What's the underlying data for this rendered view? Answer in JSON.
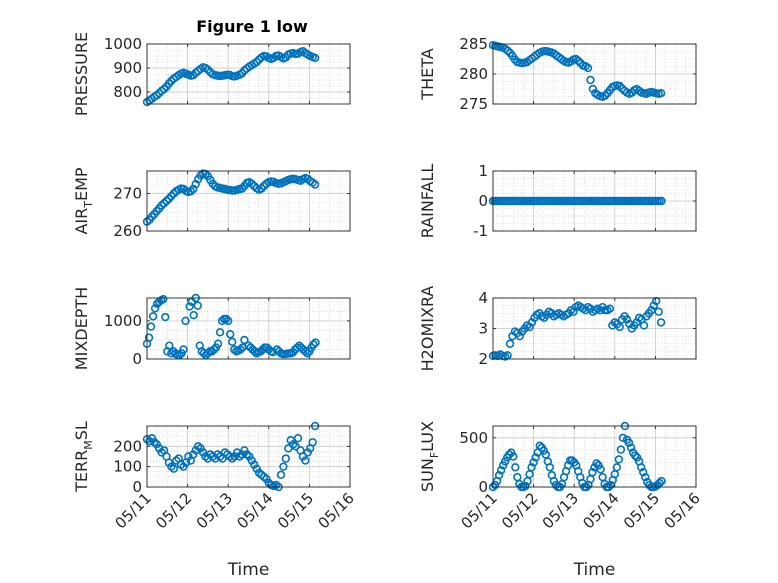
{
  "figure_title": "Figure 1 low",
  "colors": {
    "marker": "#0072BD",
    "axis": "#262626",
    "grid": "#c8c8c8"
  },
  "x_axis": {
    "label": "Time",
    "ticks": [
      0,
      1,
      2,
      3,
      4,
      5
    ],
    "tick_labels": [
      "05/11",
      "05/12",
      "05/13",
      "05/14",
      "05/15",
      "05/16"
    ]
  },
  "chart_data": [
    {
      "type": "scatter",
      "ylabel": "PRESSURE",
      "ylabel_sub": "",
      "ylabel_rest": "",
      "xlim": [
        0,
        5
      ],
      "ylim": [
        750,
        1000
      ],
      "yticks": [
        800,
        900,
        1000
      ],
      "ytick_labels": [
        "800",
        "900",
        "1000"
      ],
      "grid": true,
      "x": [
        0,
        0.06,
        0.12,
        0.18,
        0.24,
        0.3,
        0.36,
        0.42,
        0.48,
        0.54,
        0.6,
        0.66,
        0.72,
        0.78,
        0.84,
        0.9,
        0.96,
        1.02,
        1.08,
        1.14,
        1.2,
        1.26,
        1.32,
        1.38,
        1.44,
        1.5,
        1.56,
        1.62,
        1.68,
        1.74,
        1.8,
        1.86,
        1.92,
        1.98,
        2.04,
        2.1,
        2.16,
        2.22,
        2.28,
        2.34,
        2.4,
        2.46,
        2.52,
        2.58,
        2.64,
        2.7,
        2.76,
        2.82,
        2.88,
        2.94,
        3,
        3.06,
        3.12,
        3.18,
        3.24,
        3.3,
        3.36,
        3.42,
        3.48,
        3.54,
        3.6,
        3.66,
        3.72,
        3.78,
        3.84,
        3.9,
        3.96,
        4.02,
        4.08,
        4.14
      ],
      "y": [
        758,
        765,
        772,
        780,
        786,
        795,
        805,
        812,
        822,
        835,
        846,
        856,
        863,
        870,
        876,
        880,
        876,
        872,
        868,
        870,
        880,
        888,
        896,
        903,
        900,
        893,
        882,
        874,
        870,
        868,
        867,
        868,
        870,
        872,
        871,
        866,
        865,
        868,
        872,
        878,
        890,
        898,
        906,
        912,
        918,
        925,
        935,
        944,
        950,
        948,
        942,
        938,
        942,
        950,
        952,
        946,
        940,
        944,
        956,
        960,
        962,
        958,
        960,
        966,
        970,
        962,
        956,
        950,
        946,
        942
      ]
    },
    {
      "type": "scatter",
      "ylabel": "THETA",
      "ylabel_sub": "",
      "ylabel_rest": "",
      "xlim": [
        0,
        5
      ],
      "ylim": [
        275,
        285
      ],
      "yticks": [
        275,
        280,
        285
      ],
      "ytick_labels": [
        "275",
        "280",
        "285"
      ],
      "grid": true,
      "x": [
        0,
        0.06,
        0.12,
        0.18,
        0.24,
        0.3,
        0.36,
        0.42,
        0.48,
        0.54,
        0.6,
        0.66,
        0.72,
        0.78,
        0.84,
        0.9,
        0.96,
        1.02,
        1.08,
        1.14,
        1.2,
        1.26,
        1.32,
        1.38,
        1.44,
        1.5,
        1.56,
        1.62,
        1.68,
        1.74,
        1.8,
        1.86,
        1.92,
        1.98,
        2.04,
        2.1,
        2.16,
        2.22,
        2.28,
        2.34,
        2.4,
        2.46,
        2.52,
        2.58,
        2.64,
        2.7,
        2.76,
        2.82,
        2.88,
        2.94,
        3,
        3.06,
        3.12,
        3.18,
        3.24,
        3.3,
        3.36,
        3.42,
        3.48,
        3.54,
        3.6,
        3.66,
        3.72,
        3.78,
        3.84,
        3.9,
        3.96,
        4.02,
        4.08,
        4.14
      ],
      "y": [
        284.8,
        284.7,
        284.6,
        284.5,
        284.4,
        284.2,
        283.9,
        283.5,
        283,
        282.4,
        282,
        281.9,
        281.8,
        281.9,
        282,
        282.3,
        282.6,
        282.9,
        283.2,
        283.5,
        283.7,
        283.8,
        283.8,
        283.7,
        283.6,
        283.4,
        283.1,
        282.8,
        282.5,
        282.2,
        282,
        281.9,
        282.1,
        282.4,
        282.5,
        282.2,
        281.8,
        281.4,
        281.3,
        281,
        279,
        277.5,
        276.8,
        276.5,
        276.3,
        276.2,
        276.4,
        276.8,
        277.3,
        277.8,
        278,
        278.1,
        278,
        277.6,
        277.2,
        276.9,
        276.7,
        276.9,
        277.3,
        277.5,
        277.2,
        276.9,
        276.8,
        276.7,
        276.9,
        277,
        276.9,
        276.8,
        276.7,
        276.8
      ]
    },
    {
      "type": "scatter",
      "ylabel": "AIR",
      "ylabel_sub": "T",
      "ylabel_rest": "EMP",
      "xlim": [
        0,
        5
      ],
      "ylim": [
        260,
        276
      ],
      "yticks": [
        260,
        270
      ],
      "ytick_labels": [
        "260",
        "270"
      ],
      "grid": true,
      "x": [
        0,
        0.06,
        0.12,
        0.18,
        0.24,
        0.3,
        0.36,
        0.42,
        0.48,
        0.54,
        0.6,
        0.66,
        0.72,
        0.78,
        0.84,
        0.9,
        0.96,
        1.02,
        1.08,
        1.14,
        1.2,
        1.26,
        1.32,
        1.38,
        1.44,
        1.5,
        1.56,
        1.62,
        1.68,
        1.74,
        1.8,
        1.86,
        1.92,
        1.98,
        2.04,
        2.1,
        2.16,
        2.22,
        2.28,
        2.34,
        2.4,
        2.46,
        2.52,
        2.58,
        2.64,
        2.7,
        2.76,
        2.82,
        2.88,
        2.94,
        3,
        3.06,
        3.12,
        3.18,
        3.24,
        3.3,
        3.36,
        3.42,
        3.48,
        3.54,
        3.6,
        3.66,
        3.72,
        3.78,
        3.84,
        3.9,
        3.96,
        4.02,
        4.08,
        4.14
      ],
      "y": [
        262.5,
        263,
        263.8,
        264.5,
        265.3,
        266,
        266.8,
        267.4,
        268,
        268.6,
        269.3,
        270,
        270.6,
        271,
        271.3,
        271.2,
        270.7,
        270.4,
        270.6,
        271.2,
        272.5,
        273.8,
        274.8,
        275.3,
        275.2,
        274.6,
        273.6,
        272.6,
        271.9,
        271.6,
        271.5,
        271.3,
        271.2,
        271,
        270.9,
        270.8,
        270.8,
        271,
        271.2,
        271.3,
        272,
        272.8,
        273,
        272.6,
        272,
        271.4,
        271,
        271.3,
        272,
        272.6,
        273,
        273.2,
        273.1,
        272.8,
        272.6,
        272.7,
        273,
        273.3,
        273.6,
        273.8,
        273.9,
        273.8,
        273.6,
        273.4,
        273.8,
        274.1,
        273.9,
        273.3,
        272.9,
        272.4
      ]
    },
    {
      "type": "scatter",
      "ylabel": "RAINFALL",
      "ylabel_sub": "",
      "ylabel_rest": "",
      "xlim": [
        0,
        5
      ],
      "ylim": [
        -1,
        1
      ],
      "yticks": [
        -1,
        0,
        1
      ],
      "ytick_labels": [
        "-1",
        "0",
        "1"
      ],
      "grid": true,
      "x": [
        0,
        0.05,
        0.1,
        0.15,
        0.2,
        0.25,
        0.3,
        0.35,
        0.4,
        0.45,
        0.5,
        0.55,
        0.6,
        0.65,
        0.7,
        0.75,
        0.8,
        0.85,
        0.9,
        0.95,
        1,
        1.05,
        1.1,
        1.15,
        1.2,
        1.25,
        1.3,
        1.35,
        1.4,
        1.45,
        1.5,
        1.55,
        1.6,
        1.65,
        1.7,
        1.75,
        1.8,
        1.85,
        1.9,
        1.95,
        2,
        2.05,
        2.1,
        2.15,
        2.2,
        2.25,
        2.3,
        2.35,
        2.4,
        2.45,
        2.5,
        2.55,
        2.6,
        2.65,
        2.7,
        2.75,
        2.8,
        2.85,
        2.9,
        2.95,
        3,
        3.05,
        3.1,
        3.15,
        3.2,
        3.25,
        3.3,
        3.35,
        3.4,
        3.45,
        3.5,
        3.55,
        3.6,
        3.65,
        3.7,
        3.75,
        3.8,
        3.85,
        3.9,
        3.95,
        4,
        4.05,
        4.1,
        4.15
      ],
      "y": [
        0,
        0,
        0,
        0,
        0,
        0,
        0,
        0,
        0,
        0,
        0,
        0,
        0,
        0,
        0,
        0,
        0,
        0,
        0,
        0,
        0,
        0,
        0,
        0,
        0,
        0,
        0,
        0,
        0,
        0,
        0,
        0,
        0,
        0,
        0,
        0,
        0,
        0,
        0,
        0,
        0,
        0,
        0,
        0,
        0,
        0,
        0,
        0,
        0,
        0,
        0,
        0,
        0,
        0,
        0,
        0,
        0,
        0,
        0,
        0,
        0,
        0,
        0,
        0,
        0,
        0,
        0,
        0,
        0,
        0,
        0,
        0,
        0,
        0,
        0,
        0,
        0,
        0,
        0,
        0,
        0,
        0,
        0,
        0
      ]
    },
    {
      "type": "scatter",
      "ylabel": "MIXDEPTH",
      "ylabel_sub": "",
      "ylabel_rest": "",
      "xlim": [
        0,
        5
      ],
      "ylim": [
        0,
        1600
      ],
      "yticks": [
        0,
        1000
      ],
      "ytick_labels": [
        "0",
        "1000"
      ],
      "grid": true,
      "x": [
        0,
        0.05,
        0.1,
        0.15,
        0.2,
        0.25,
        0.3,
        0.35,
        0.4,
        0.45,
        0.5,
        0.55,
        0.6,
        0.65,
        0.7,
        0.75,
        0.8,
        0.85,
        0.9,
        0.95,
        1.05,
        1.1,
        1.15,
        1.2,
        1.25,
        1.3,
        1.35,
        1.4,
        1.45,
        1.5,
        1.55,
        1.6,
        1.65,
        1.7,
        1.75,
        1.8,
        1.85,
        1.9,
        1.95,
        2,
        2.05,
        2.1,
        2.15,
        2.2,
        2.25,
        2.3,
        2.35,
        2.4,
        2.5,
        2.55,
        2.6,
        2.65,
        2.7,
        2.75,
        2.8,
        2.85,
        2.9,
        2.95,
        3,
        3.05,
        3.1,
        3.2,
        3.25,
        3.3,
        3.35,
        3.4,
        3.45,
        3.5,
        3.55,
        3.6,
        3.65,
        3.7,
        3.75,
        3.8,
        3.85,
        3.9,
        3.95,
        4,
        4.05,
        4.1,
        4.15
      ],
      "y": [
        400,
        560,
        850,
        1120,
        1330,
        1450,
        1500,
        1540,
        1570,
        1100,
        200,
        350,
        150,
        200,
        140,
        110,
        100,
        150,
        250,
        1000,
        1380,
        1500,
        1150,
        1600,
        1400,
        350,
        200,
        150,
        100,
        150,
        200,
        200,
        250,
        300,
        400,
        700,
        1000,
        1050,
        1050,
        1000,
        650,
        450,
        250,
        200,
        220,
        250,
        300,
        500,
        350,
        300,
        250,
        200,
        150,
        180,
        200,
        250,
        300,
        300,
        250,
        200,
        180,
        250,
        200,
        150,
        130,
        130,
        140,
        150,
        150,
        180,
        250,
        300,
        350,
        300,
        250,
        200,
        150,
        200,
        300,
        380,
        430
      ]
    },
    {
      "type": "scatter",
      "ylabel": "H2OMIXRA",
      "ylabel_sub": "",
      "ylabel_rest": "",
      "xlim": [
        0,
        5
      ],
      "ylim": [
        2,
        4
      ],
      "yticks": [
        2,
        3,
        4
      ],
      "ytick_labels": [
        "2",
        "3",
        "4"
      ],
      "grid": true,
      "x": [
        0,
        0.06,
        0.12,
        0.18,
        0.24,
        0.3,
        0.36,
        0.42,
        0.48,
        0.54,
        0.6,
        0.66,
        0.72,
        0.78,
        0.84,
        0.9,
        0.96,
        1.02,
        1.08,
        1.14,
        1.2,
        1.26,
        1.32,
        1.38,
        1.44,
        1.5,
        1.56,
        1.62,
        1.68,
        1.74,
        1.8,
        1.86,
        1.92,
        1.98,
        2.04,
        2.1,
        2.16,
        2.22,
        2.28,
        2.34,
        2.4,
        2.46,
        2.52,
        2.58,
        2.64,
        2.7,
        2.76,
        2.82,
        2.88,
        2.94,
        3,
        3.06,
        3.12,
        3.18,
        3.24,
        3.3,
        3.36,
        3.42,
        3.48,
        3.54,
        3.6,
        3.66,
        3.72,
        3.78,
        3.84,
        3.9,
        3.96,
        4.02,
        4.08,
        4.14
      ],
      "y": [
        2.1,
        2.12,
        2.1,
        2.15,
        2.1,
        2.08,
        2.12,
        2.5,
        2.75,
        2.9,
        2.85,
        2.75,
        2.9,
        3,
        3.1,
        3.05,
        3.2,
        3.35,
        3.45,
        3.5,
        3.4,
        3.35,
        3.45,
        3.55,
        3.5,
        3.4,
        3.45,
        3.5,
        3.45,
        3.4,
        3.45,
        3.5,
        3.6,
        3.55,
        3.7,
        3.75,
        3.7,
        3.65,
        3.6,
        3.7,
        3.65,
        3.55,
        3.6,
        3.65,
        3.6,
        3.7,
        3.6,
        3.6,
        3.65,
        3.1,
        3.2,
        3.15,
        3.05,
        3.3,
        3.4,
        3.3,
        3.15,
        3,
        3.1,
        3.2,
        3.35,
        3.3,
        3.1,
        3.4,
        3.5,
        3.6,
        3.75,
        3.9,
        3.55,
        3.2
      ]
    },
    {
      "type": "scatter",
      "ylabel": "TERR",
      "ylabel_sub": "M",
      "ylabel_rest": "SL",
      "xlim": [
        0,
        5
      ],
      "ylim": [
        0,
        300
      ],
      "yticks": [
        0,
        100,
        200
      ],
      "ytick_labels": [
        "0",
        "100",
        "200"
      ],
      "grid": true,
      "x": [
        0,
        0.06,
        0.12,
        0.18,
        0.24,
        0.3,
        0.36,
        0.42,
        0.48,
        0.54,
        0.6,
        0.66,
        0.72,
        0.78,
        0.84,
        0.9,
        0.96,
        1.02,
        1.08,
        1.14,
        1.2,
        1.26,
        1.32,
        1.38,
        1.44,
        1.5,
        1.56,
        1.62,
        1.68,
        1.74,
        1.8,
        1.86,
        1.92,
        1.98,
        2.04,
        2.1,
        2.16,
        2.22,
        2.28,
        2.34,
        2.4,
        2.46,
        2.52,
        2.58,
        2.64,
        2.7,
        2.76,
        2.82,
        2.88,
        2.94,
        3,
        3.06,
        3.12,
        3.18,
        3.24,
        3.3,
        3.36,
        3.42,
        3.48,
        3.54,
        3.6,
        3.66,
        3.72,
        3.78,
        3.84,
        3.9,
        3.96,
        4.02,
        4.08,
        4.14
      ],
      "y": [
        235,
        225,
        240,
        220,
        210,
        190,
        170,
        180,
        150,
        120,
        100,
        90,
        130,
        140,
        110,
        100,
        120,
        150,
        130,
        160,
        180,
        200,
        190,
        170,
        150,
        140,
        160,
        150,
        140,
        160,
        150,
        140,
        170,
        160,
        150,
        140,
        150,
        170,
        150,
        160,
        180,
        160,
        150,
        130,
        110,
        90,
        70,
        60,
        50,
        40,
        20,
        10,
        5,
        10,
        0,
        60,
        100,
        140,
        190,
        230,
        210,
        200,
        240,
        180,
        150,
        130,
        170,
        190,
        220,
        300
      ]
    },
    {
      "type": "scatter",
      "ylabel": "SUN",
      "ylabel_sub": "F",
      "ylabel_rest": "LUX",
      "xlim": [
        0,
        5
      ],
      "ylim": [
        0,
        620
      ],
      "yticks": [
        0,
        500
      ],
      "ytick_labels": [
        "0",
        "500"
      ],
      "grid": true,
      "x": [
        0,
        0.05,
        0.1,
        0.15,
        0.2,
        0.25,
        0.3,
        0.35,
        0.4,
        0.45,
        0.5,
        0.55,
        0.6,
        0.65,
        0.7,
        0.75,
        0.8,
        0.85,
        0.9,
        0.95,
        1,
        1.05,
        1.1,
        1.15,
        1.2,
        1.25,
        1.3,
        1.35,
        1.4,
        1.45,
        1.5,
        1.55,
        1.6,
        1.65,
        1.7,
        1.75,
        1.8,
        1.85,
        1.9,
        1.95,
        2,
        2.05,
        2.1,
        2.15,
        2.2,
        2.25,
        2.3,
        2.35,
        2.4,
        2.45,
        2.5,
        2.55,
        2.6,
        2.65,
        2.7,
        2.75,
        2.8,
        2.85,
        2.9,
        2.95,
        3,
        3.05,
        3.1,
        3.15,
        3.2,
        3.25,
        3.3,
        3.35,
        3.4,
        3.45,
        3.5,
        3.55,
        3.6,
        3.65,
        3.7,
        3.75,
        3.8,
        3.85,
        3.9,
        3.95,
        4,
        4.05,
        4.1,
        4.15
      ],
      "y": [
        0,
        20,
        60,
        120,
        170,
        220,
        260,
        300,
        330,
        350,
        310,
        200,
        100,
        30,
        0,
        0,
        10,
        60,
        130,
        200,
        250,
        300,
        350,
        420,
        400,
        370,
        330,
        260,
        200,
        120,
        60,
        20,
        0,
        0,
        30,
        100,
        160,
        220,
        270,
        270,
        250,
        220,
        160,
        100,
        40,
        0,
        0,
        20,
        80,
        150,
        200,
        240,
        220,
        180,
        100,
        30,
        0,
        0,
        20,
        70,
        130,
        200,
        280,
        380,
        500,
        620,
        480,
        450,
        400,
        350,
        320,
        300,
        260,
        200,
        150,
        100,
        50,
        20,
        0,
        0,
        5,
        20,
        40,
        60
      ]
    }
  ]
}
